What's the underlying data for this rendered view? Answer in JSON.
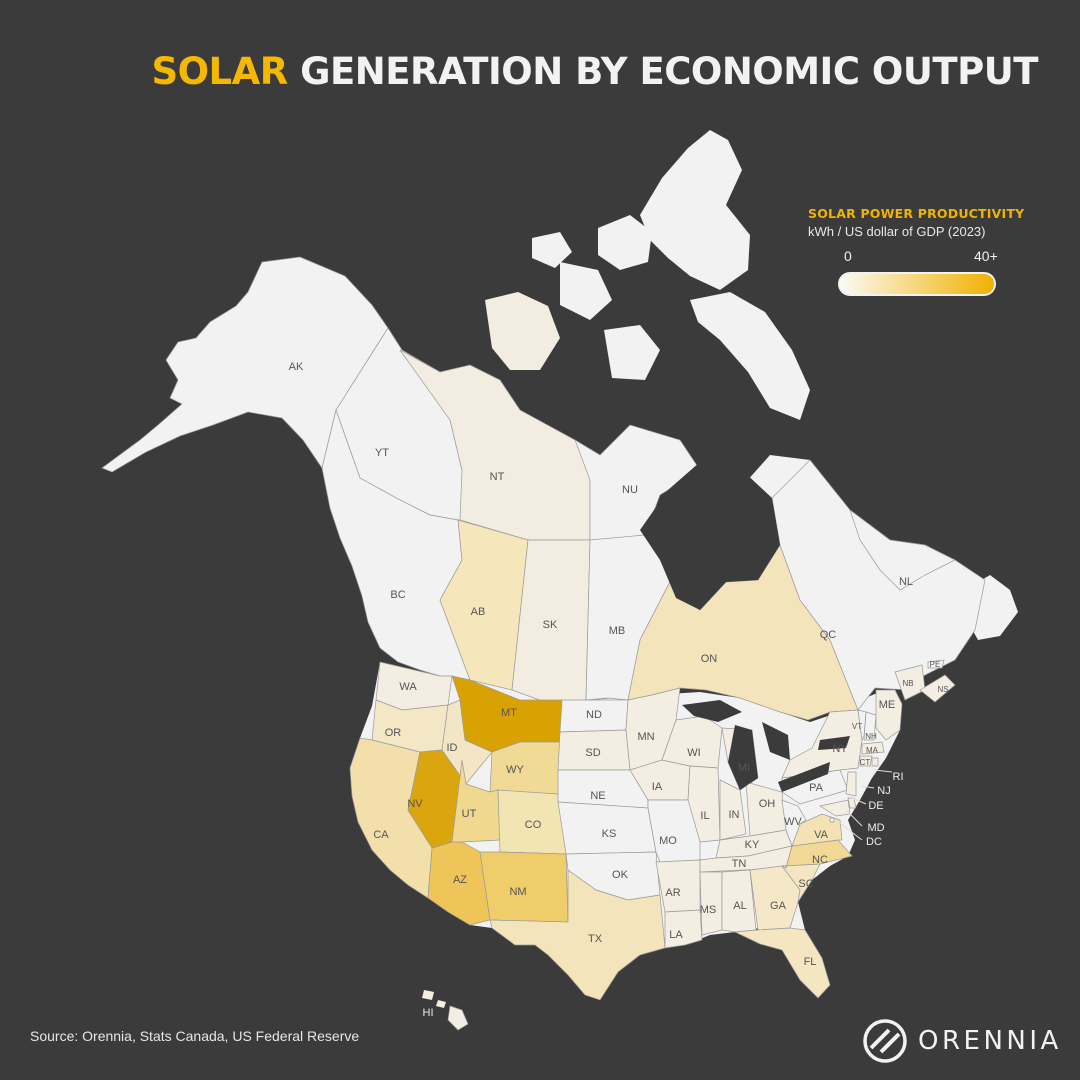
{
  "title": {
    "highlight": "SOLAR",
    "rest": "GENERATION BY ECONOMIC OUTPUT"
  },
  "legend": {
    "title": "SOLAR POWER PRODUCTIVITY",
    "subtitle": "kWh / US dollar of GDP (2023)",
    "min_label": "0",
    "max_label": "40+",
    "color_low": "#fbfaf4",
    "color_high": "#f2b100"
  },
  "map": {
    "background_color": "#3b3b3b",
    "no_data_color": "#f2f2f2",
    "border_color": "#9a9a9a",
    "label_color": "#555555",
    "regions": [
      {
        "code": "AK",
        "color": "#f2f2f2"
      },
      {
        "code": "YT",
        "color": "#f2f2f2"
      },
      {
        "code": "NT",
        "color": "#f3ece0"
      },
      {
        "code": "NU",
        "color": "#f2f2f2"
      },
      {
        "code": "BC",
        "color": "#f2f2f2"
      },
      {
        "code": "AB",
        "color": "#f5e6bc"
      },
      {
        "code": "SK",
        "color": "#f3ece0"
      },
      {
        "code": "MB",
        "color": "#f2f2f2"
      },
      {
        "code": "ON",
        "color": "#f4e4bc"
      },
      {
        "code": "QC",
        "color": "#f2f2f2"
      },
      {
        "code": "NL",
        "color": "#f2f2f2"
      },
      {
        "code": "NB",
        "color": "#f3ede2"
      },
      {
        "code": "NS",
        "color": "#f3ede2"
      },
      {
        "code": "PE",
        "color": "#f2f2f2"
      },
      {
        "code": "WA",
        "color": "#f3ede2"
      },
      {
        "code": "OR",
        "color": "#f4e7c6"
      },
      {
        "code": "CA",
        "color": "#f2dfaa"
      },
      {
        "code": "NV",
        "color": "#dba50d"
      },
      {
        "code": "ID",
        "color": "#f3e6c6"
      },
      {
        "code": "MT",
        "color": "#d9a203"
      },
      {
        "code": "WY",
        "color": "#f1d996"
      },
      {
        "code": "UT",
        "color": "#f1d88f"
      },
      {
        "code": "CO",
        "color": "#f3e4b4"
      },
      {
        "code": "AZ",
        "color": "#efc459"
      },
      {
        "code": "NM",
        "color": "#f0cd6b"
      },
      {
        "code": "ND",
        "color": "#f2f2f2"
      },
      {
        "code": "SD",
        "color": "#f3ede2"
      },
      {
        "code": "NE",
        "color": "#f2f2f2"
      },
      {
        "code": "KS",
        "color": "#f2f2f2"
      },
      {
        "code": "OK",
        "color": "#f2f2f2"
      },
      {
        "code": "TX",
        "color": "#f3e4bc"
      },
      {
        "code": "MN",
        "color": "#f3ede2"
      },
      {
        "code": "IA",
        "color": "#f3ede2"
      },
      {
        "code": "MO",
        "color": "#f2f2f2"
      },
      {
        "code": "AR",
        "color": "#f3ede2"
      },
      {
        "code": "LA",
        "color": "#f3ede2"
      },
      {
        "code": "WI",
        "color": "#f3ede2"
      },
      {
        "code": "IL",
        "color": "#f3ede2"
      },
      {
        "code": "MI",
        "color": "#f3ede2"
      },
      {
        "code": "IN",
        "color": "#f3ede2"
      },
      {
        "code": "OH",
        "color": "#f3ede2"
      },
      {
        "code": "KY",
        "color": "#f3ede2"
      },
      {
        "code": "TN",
        "color": "#f3ede2"
      },
      {
        "code": "MS",
        "color": "#f3ede2"
      },
      {
        "code": "AL",
        "color": "#f3ede2"
      },
      {
        "code": "GA",
        "color": "#f4e8c8"
      },
      {
        "code": "FL",
        "color": "#f4e6c0"
      },
      {
        "code": "SC",
        "color": "#f4e6c2"
      },
      {
        "code": "NC",
        "color": "#f2d895"
      },
      {
        "code": "VA",
        "color": "#f4e2b4"
      },
      {
        "code": "WV",
        "color": "#f2f2f2"
      },
      {
        "code": "PA",
        "color": "#f2f2f2"
      },
      {
        "code": "NY",
        "color": "#f3ede2"
      },
      {
        "code": "VT",
        "color": "#f2f2f2"
      },
      {
        "code": "NH",
        "color": "#f2f2f2"
      },
      {
        "code": "ME",
        "color": "#f3ede2"
      },
      {
        "code": "MA",
        "color": "#f3ede2"
      },
      {
        "code": "CT",
        "color": "#f3ede2"
      },
      {
        "code": "RI",
        "color": "#f3ede2"
      },
      {
        "code": "NJ",
        "color": "#f3ede2"
      },
      {
        "code": "DE",
        "color": "#f3ede2"
      },
      {
        "code": "MD",
        "color": "#f3ede2"
      },
      {
        "code": "DC",
        "color": "#f2f2f2"
      },
      {
        "code": "HI",
        "color": "#f3ede2"
      }
    ]
  },
  "source": "Source: Orennia, Stats Canada, US Federal Reserve",
  "brand": {
    "name": "ORENNIA"
  }
}
